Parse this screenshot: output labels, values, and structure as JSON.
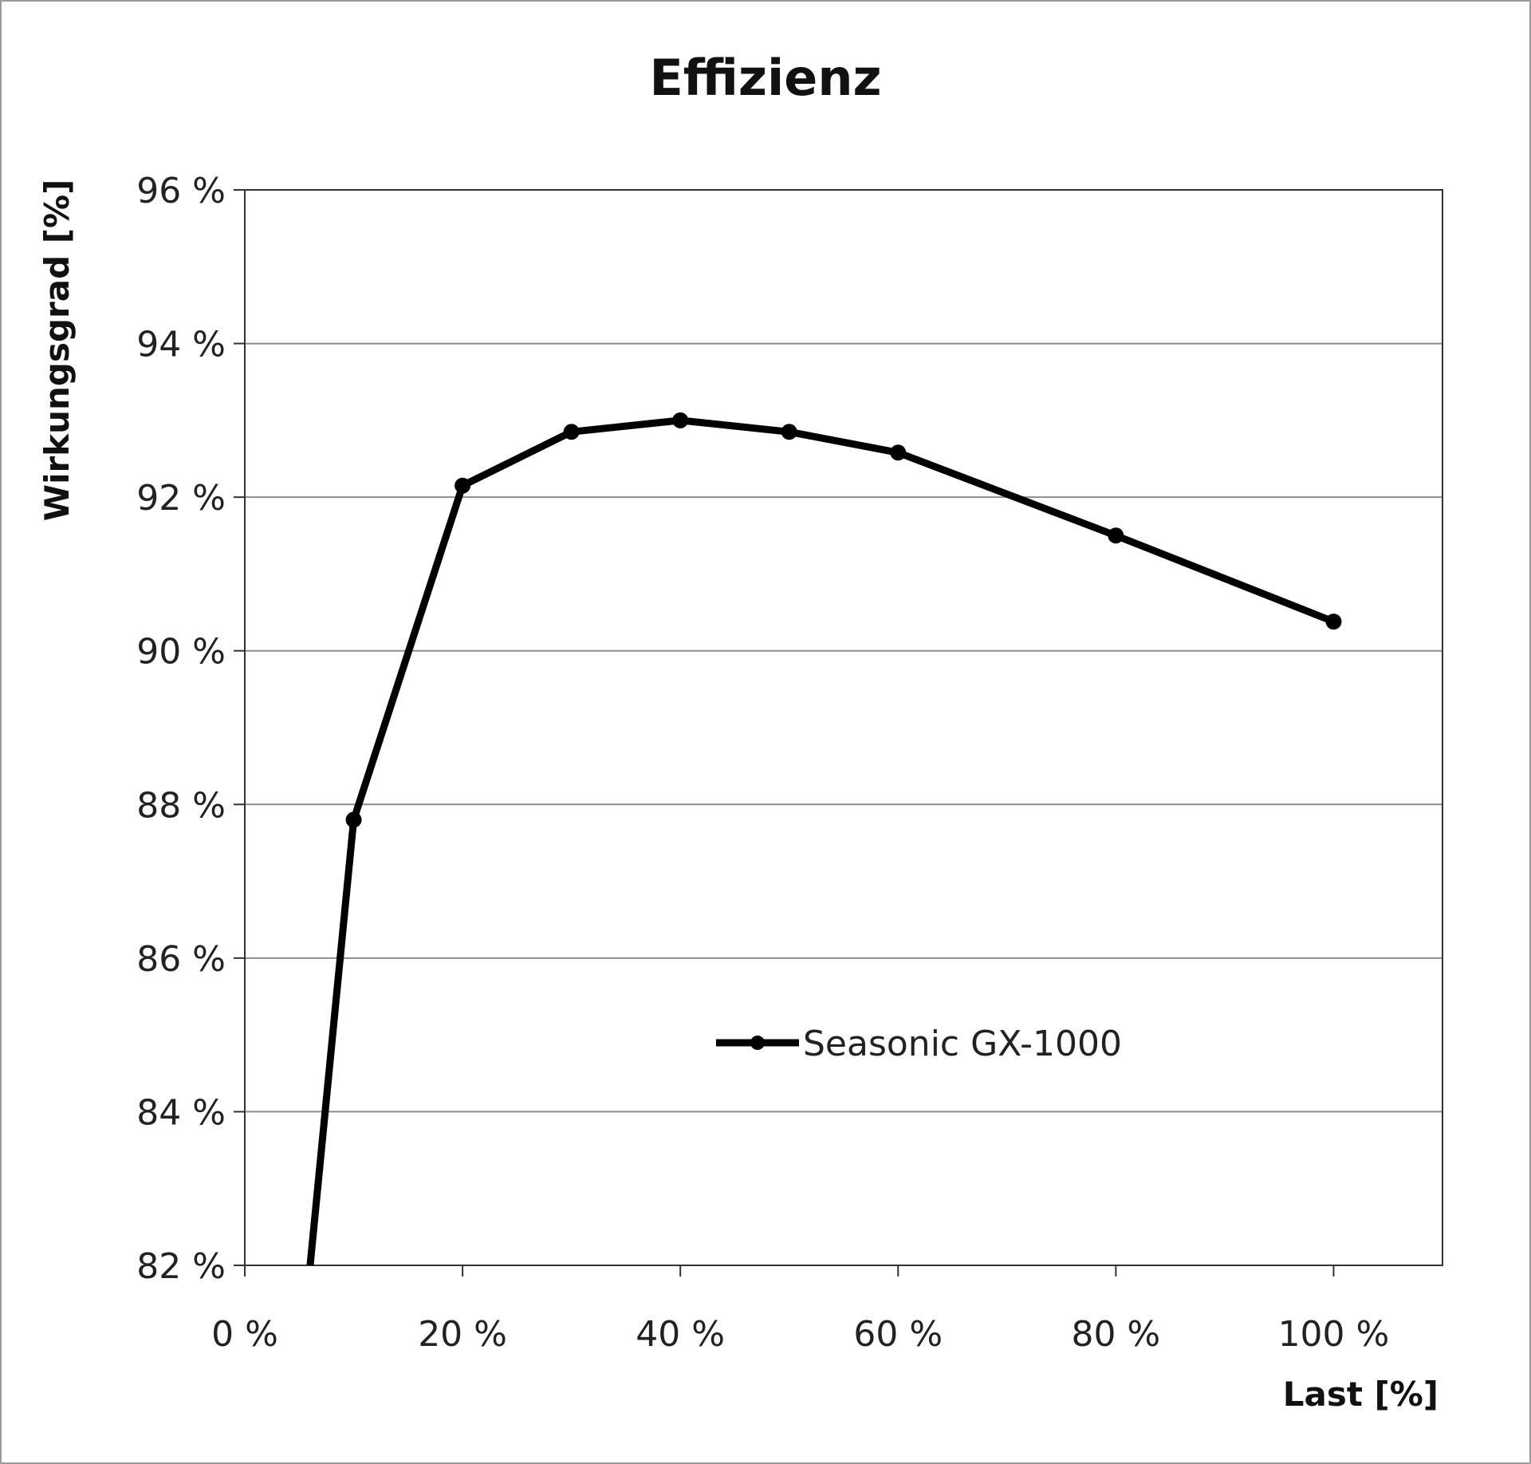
{
  "chart_data": {
    "type": "line",
    "title": "Effizienz",
    "xlabel": "Last [%]",
    "ylabel": "Wirkungsgrad [%]",
    "xlim": [
      0,
      110
    ],
    "ylim": [
      82,
      96
    ],
    "x_ticks": [
      0,
      20,
      40,
      60,
      80,
      100
    ],
    "x_tick_labels": [
      "0 %",
      "20 %",
      "40 %",
      "60 %",
      "80 %",
      "100 %"
    ],
    "y_ticks": [
      82,
      84,
      86,
      88,
      90,
      92,
      94,
      96
    ],
    "y_tick_labels": [
      "82 %",
      "84 %",
      "86 %",
      "88 %",
      "90 %",
      "92 %",
      "94 %",
      "96 %"
    ],
    "grid": "horizontal",
    "legend_position": "center-right",
    "series": [
      {
        "name": "Seasonic GX-1000",
        "color": "#000000",
        "points": [
          {
            "x": 6,
            "y": 82.0,
            "marker": false
          },
          {
            "x": 10,
            "y": 87.8,
            "marker": true
          },
          {
            "x": 20,
            "y": 92.15,
            "marker": true
          },
          {
            "x": 30,
            "y": 92.85,
            "marker": true
          },
          {
            "x": 40,
            "y": 93.0,
            "marker": true
          },
          {
            "x": 50,
            "y": 92.85,
            "marker": true
          },
          {
            "x": 60,
            "y": 92.58,
            "marker": true
          },
          {
            "x": 80,
            "y": 91.5,
            "marker": true
          },
          {
            "x": 100,
            "y": 90.38,
            "marker": true
          }
        ]
      }
    ]
  }
}
